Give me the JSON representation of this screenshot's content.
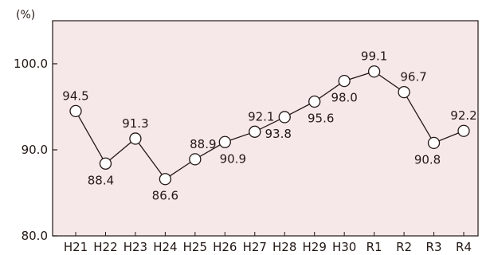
{
  "chart_data": {
    "type": "line",
    "ylabel": "(%)",
    "categories": [
      "H21",
      "H22",
      "H23",
      "H24",
      "H25",
      "H26",
      "H27",
      "H28",
      "H29",
      "H30",
      "R1",
      "R2",
      "R3",
      "R4"
    ],
    "series": [
      {
        "values": [
          94.5,
          88.4,
          91.3,
          86.6,
          88.9,
          90.9,
          92.1,
          93.8,
          95.6,
          98.0,
          99.1,
          96.7,
          90.8,
          92.2
        ]
      }
    ],
    "data_labels": [
      "94.5",
      "88.4",
      "91.3",
      "86.6",
      "88.9",
      "90.9",
      "92.1",
      "93.8",
      "95.6",
      "98.0",
      "99.1",
      "96.7",
      "90.8",
      "92.2"
    ],
    "ylim": [
      80.0,
      105.0
    ],
    "yticks": [
      {
        "value": 80.0,
        "label": "80.0"
      },
      {
        "value": 90.0,
        "label": "90.0"
      },
      {
        "value": 100.0,
        "label": "100.0"
      }
    ],
    "grid": false,
    "legend": "none",
    "colors": {
      "plot_background": "#f6e8e8",
      "line": "#231815",
      "marker_fill": "#ffffff",
      "axis": "#231815"
    }
  }
}
